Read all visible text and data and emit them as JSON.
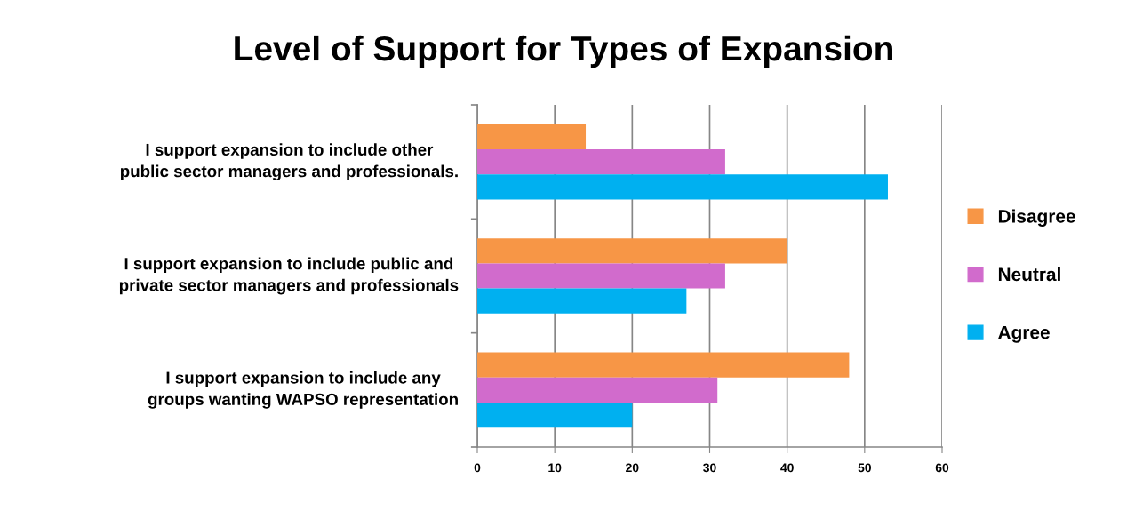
{
  "chart_data": {
    "type": "bar",
    "orientation": "horizontal",
    "title": "Level of Support for Types of Expansion",
    "categories": [
      "I support expansion to include other public sector managers and professionals.",
      "I support expansion to include public and private sector managers and professionals",
      "I support expansion to include any groups wanting WAPSO representation"
    ],
    "series": [
      {
        "name": "Disagree",
        "color": "#f79646",
        "values": [
          14,
          40,
          48
        ]
      },
      {
        "name": "Neutral",
        "color": "#d16bcc",
        "values": [
          32,
          32,
          31
        ]
      },
      {
        "name": "Agree",
        "color": "#00b0f0",
        "values": [
          53,
          27,
          20
        ]
      }
    ],
    "xlim": [
      0,
      60
    ],
    "xticks": [
      0,
      10,
      20,
      30,
      40,
      50,
      60
    ],
    "grid": "x",
    "legend": "right"
  }
}
